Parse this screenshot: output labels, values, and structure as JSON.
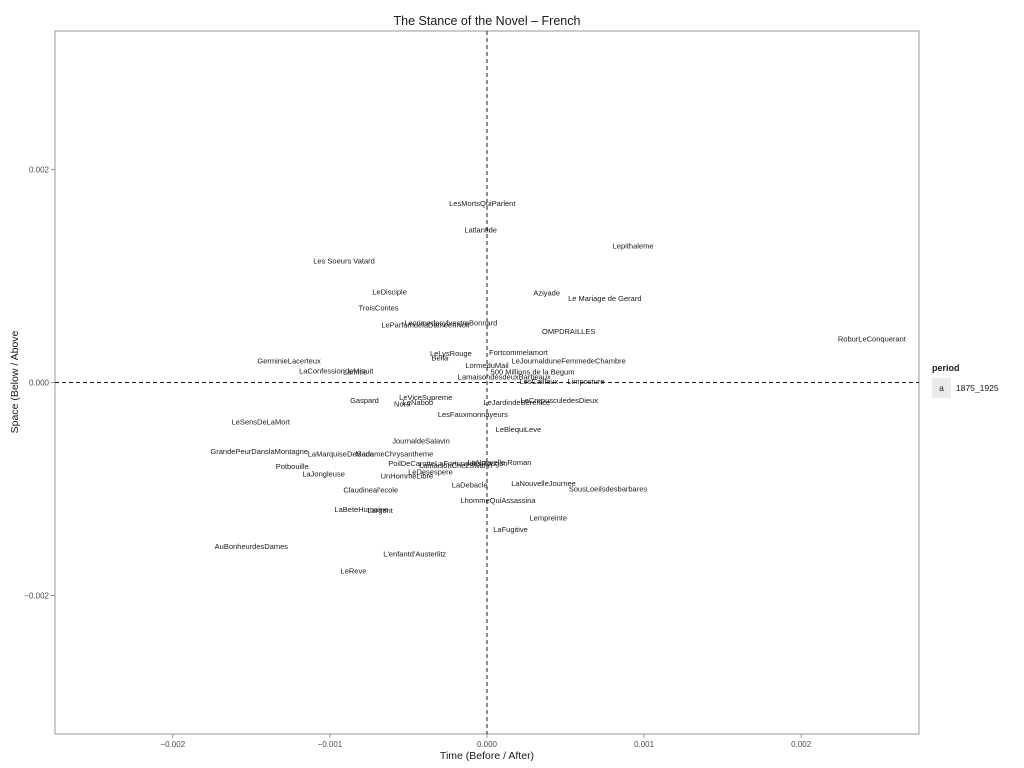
{
  "chart_data": {
    "type": "scatter",
    "title": "The Stance of the Novel – French",
    "xlabel": "Time (Before / After)",
    "ylabel": "Space (Below / Above",
    "xlim": [
      -0.00275,
      0.00275
    ],
    "ylim": [
      -0.0033,
      0.0033
    ],
    "xticks": [
      {
        "value": -0.002,
        "label": "−0.002"
      },
      {
        "value": -0.001,
        "label": "−0.001"
      },
      {
        "value": 0,
        "label": "0.000"
      },
      {
        "value": 0.001,
        "label": "0.001"
      },
      {
        "value": 0.002,
        "label": "0.002"
      }
    ],
    "yticks": [
      {
        "value": 0.002,
        "label": "0.002"
      },
      {
        "value": 0,
        "label": "0.000"
      },
      {
        "value": -0.002,
        "label": "−0.002"
      }
    ],
    "reference_lines": {
      "x": 0,
      "y": 0,
      "style": "dashed"
    },
    "grid": false,
    "legend": {
      "title": "period",
      "position": "right",
      "entries": [
        {
          "key": "a",
          "label": "1875_1925"
        }
      ]
    },
    "points": [
      {
        "label": "LesMortsQuiParlent",
        "x": -3e-05,
        "y": 0.00168
      },
      {
        "label": "Latlantide",
        "x": -4e-05,
        "y": 0.00143
      },
      {
        "label": "Lepithaleme",
        "x": 0.00093,
        "y": 0.00128
      },
      {
        "label": "Les Soeurs Vatard",
        "x": -0.00091,
        "y": 0.00114
      },
      {
        "label": "LeDisciple",
        "x": -0.00062,
        "y": 0.00085
      },
      {
        "label": "Aziyade",
        "x": 0.00038,
        "y": 0.00084
      },
      {
        "label": "Le Mariage de Gerard",
        "x": 0.00075,
        "y": 0.00079
      },
      {
        "label": "TroisContes",
        "x": -0.00069,
        "y": 0.0007
      },
      {
        "label": "LecrimedesylvestreBonnard",
        "x": -0.00023,
        "y": 0.00056
      },
      {
        "label": "LeParfumdelaDameenNoir",
        "x": -0.00039,
        "y": 0.00054
      },
      {
        "label": "OMPDRAILLES",
        "x": 0.00052,
        "y": 0.00048
      },
      {
        "label": "RoburLeConquerant",
        "x": 0.00245,
        "y": 0.00041
      },
      {
        "label": "Fortcommelamort",
        "x": 0.0002,
        "y": 0.00028
      },
      {
        "label": "LeLysRouge",
        "x": -0.00023,
        "y": 0.00027
      },
      {
        "label": "Bella",
        "x": -0.0003,
        "y": 0.00023
      },
      {
        "label": "GerminieLacerteux",
        "x": -0.00126,
        "y": 0.0002
      },
      {
        "label": "LeJournalduneFemmedeChambre",
        "x": 0.00052,
        "y": 0.0002
      },
      {
        "label": "LormeduMail",
        "x": 0.0,
        "y": 0.00016
      },
      {
        "label": "LaConfessiondeMinuit",
        "x": -0.00096,
        "y": 0.00011
      },
      {
        "label": "Lamitie",
        "x": -0.00084,
        "y": 0.0001
      },
      {
        "label": "500 Millions de la Begum",
        "x": 0.00029,
        "y": 0.0001
      },
      {
        "label": "LamaisondesdeuxBarbeaux",
        "x": 0.00011,
        "y": 5e-05
      },
      {
        "label": "LesCaillaux",
        "x": 0.00033,
        "y": 1e-05
      },
      {
        "label": "Limposture",
        "x": 0.00063,
        "y": 1e-05
      },
      {
        "label": "LeViceSupreme",
        "x": -0.00039,
        "y": -0.00014
      },
      {
        "label": "Gaspard",
        "x": -0.00078,
        "y": -0.00017
      },
      {
        "label": "Nora",
        "x": -0.00054,
        "y": -0.0002
      },
      {
        "label": "LeNabob",
        "x": -0.00044,
        "y": -0.00019
      },
      {
        "label": "LeJardindeBerenice",
        "x": 0.00019,
        "y": -0.00019
      },
      {
        "label": "LeCrepusculedesDieux",
        "x": 0.00046,
        "y": -0.00017
      },
      {
        "label": "LesFauxmonnayeurs",
        "x": -9e-05,
        "y": -0.0003
      },
      {
        "label": "LeSensDeLaMort",
        "x": -0.00144,
        "y": -0.00037
      },
      {
        "label": "LeBlequiLeve",
        "x": 0.0002,
        "y": -0.00044
      },
      {
        "label": "JournaldeSalavin",
        "x": -0.00042,
        "y": -0.00055
      },
      {
        "label": "GrandePeurDanslaMontagne",
        "x": -0.00145,
        "y": -0.00065
      },
      {
        "label": "LaMarquiseDeSade",
        "x": -0.00093,
        "y": -0.00067
      },
      {
        "label": "MadameChrysantheme",
        "x": -0.00059,
        "y": -0.00067
      },
      {
        "label": "PoilDeCarotte",
        "x": -0.00048,
        "y": -0.00076
      },
      {
        "label": "LaFortunedesRougon",
        "x": -0.0001,
        "y": -0.00076
      },
      {
        "label": "LaNouvelle Roman",
        "x": 8e-05,
        "y": -0.00075
      },
      {
        "label": "LamaisonChezSwann",
        "x": -0.0002,
        "y": -0.00078
      },
      {
        "label": "Potbouille",
        "x": -0.00124,
        "y": -0.00079
      },
      {
        "label": "LeDesespere",
        "x": -0.00036,
        "y": -0.00084
      },
      {
        "label": "LaJongleuse",
        "x": -0.00104,
        "y": -0.00086
      },
      {
        "label": "UnHommeLibre",
        "x": -0.00051,
        "y": -0.00088
      },
      {
        "label": "LaDebacle",
        "x": -0.00011,
        "y": -0.00096
      },
      {
        "label": "LaNouvelleJournee",
        "x": 0.00036,
        "y": -0.00095
      },
      {
        "label": "Claudineal'ecole",
        "x": -0.00074,
        "y": -0.00101
      },
      {
        "label": "SousLoeilsdesbarbares",
        "x": 0.00077,
        "y": -0.001
      },
      {
        "label": "LhommeQuiAssassina",
        "x": 7e-05,
        "y": -0.00111
      },
      {
        "label": "LaBeteHumaine",
        "x": -0.0008,
        "y": -0.00119
      },
      {
        "label": "Largent",
        "x": -0.00068,
        "y": -0.0012
      },
      {
        "label": "Lempreinte",
        "x": 0.00039,
        "y": -0.00127
      },
      {
        "label": "LaFugitive",
        "x": 0.00015,
        "y": -0.00138
      },
      {
        "label": "AuBonheurdesDames",
        "x": -0.0015,
        "y": -0.00154
      },
      {
        "label": "L'enfantd'Austerlitz",
        "x": -0.00046,
        "y": -0.00161
      },
      {
        "label": "LeReve",
        "x": -0.00085,
        "y": -0.00177
      }
    ]
  }
}
